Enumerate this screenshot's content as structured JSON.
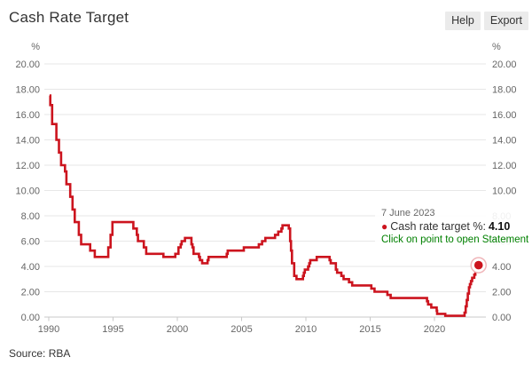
{
  "header": {
    "title": "Cash Rate Target",
    "buttons": {
      "help": "Help",
      "export": "Export"
    }
  },
  "tooltip": {
    "date": "7 June 2023",
    "series_label": "Cash rate target %:",
    "value": "4.10",
    "action": "Click on point to open Statement"
  },
  "footer": {
    "source": "Source: RBA"
  },
  "chart_data": {
    "type": "line",
    "step": "after",
    "title": "Cash Rate Target",
    "unit": "%",
    "grid": true,
    "legend_position": "none",
    "xlim": [
      1989.6,
      2024
    ],
    "ylim": [
      0,
      20
    ],
    "xticks": [
      1990,
      1995,
      2000,
      2005,
      2010,
      2015,
      2020
    ],
    "yticks": [
      0,
      2,
      4,
      6,
      8,
      10,
      12,
      14,
      16,
      18,
      20
    ],
    "ytick_decimals": 2,
    "series": [
      {
        "name": "Cash rate target %",
        "color": "#cc141e",
        "points": [
          [
            1990.06,
            17.5
          ],
          [
            1990.12,
            16.75
          ],
          [
            1990.26,
            15.25
          ],
          [
            1990.59,
            14.0
          ],
          [
            1990.79,
            13.0
          ],
          [
            1990.96,
            12.0
          ],
          [
            1991.26,
            11.5
          ],
          [
            1991.37,
            10.5
          ],
          [
            1991.67,
            9.5
          ],
          [
            1991.85,
            8.5
          ],
          [
            1992.02,
            7.5
          ],
          [
            1992.34,
            6.5
          ],
          [
            1992.52,
            5.75
          ],
          [
            1993.22,
            5.25
          ],
          [
            1993.58,
            4.75
          ],
          [
            1994.63,
            5.5
          ],
          [
            1994.81,
            6.5
          ],
          [
            1994.95,
            7.5
          ],
          [
            1996.58,
            7.0
          ],
          [
            1996.85,
            6.5
          ],
          [
            1996.94,
            6.0
          ],
          [
            1997.39,
            5.5
          ],
          [
            1997.58,
            5.0
          ],
          [
            1998.92,
            4.75
          ],
          [
            1999.84,
            5.0
          ],
          [
            2000.09,
            5.5
          ],
          [
            2000.26,
            5.75
          ],
          [
            2000.34,
            6.0
          ],
          [
            2000.59,
            6.25
          ],
          [
            2001.1,
            5.75
          ],
          [
            2001.18,
            5.5
          ],
          [
            2001.26,
            5.0
          ],
          [
            2001.68,
            4.75
          ],
          [
            2001.76,
            4.5
          ],
          [
            2001.93,
            4.25
          ],
          [
            2002.35,
            4.5
          ],
          [
            2002.43,
            4.75
          ],
          [
            2003.84,
            5.0
          ],
          [
            2003.92,
            5.25
          ],
          [
            2005.17,
            5.5
          ],
          [
            2006.34,
            5.75
          ],
          [
            2006.59,
            6.0
          ],
          [
            2006.85,
            6.25
          ],
          [
            2007.6,
            6.5
          ],
          [
            2007.85,
            6.75
          ],
          [
            2008.1,
            7.0
          ],
          [
            2008.18,
            7.25
          ],
          [
            2008.67,
            7.0
          ],
          [
            2008.77,
            6.0
          ],
          [
            2008.84,
            5.25
          ],
          [
            2008.92,
            4.25
          ],
          [
            2009.09,
            3.25
          ],
          [
            2009.27,
            3.0
          ],
          [
            2009.77,
            3.25
          ],
          [
            2009.84,
            3.5
          ],
          [
            2009.92,
            3.75
          ],
          [
            2010.17,
            4.0
          ],
          [
            2010.26,
            4.25
          ],
          [
            2010.34,
            4.5
          ],
          [
            2010.84,
            4.75
          ],
          [
            2011.84,
            4.5
          ],
          [
            2011.93,
            4.25
          ],
          [
            2012.33,
            3.75
          ],
          [
            2012.43,
            3.5
          ],
          [
            2012.76,
            3.25
          ],
          [
            2012.93,
            3.0
          ],
          [
            2013.35,
            2.75
          ],
          [
            2013.6,
            2.5
          ],
          [
            2015.09,
            2.25
          ],
          [
            2015.34,
            2.0
          ],
          [
            2016.34,
            1.75
          ],
          [
            2016.59,
            1.5
          ],
          [
            2019.42,
            1.25
          ],
          [
            2019.5,
            1.0
          ],
          [
            2019.75,
            0.75
          ],
          [
            2020.17,
            0.5
          ],
          [
            2020.21,
            0.25
          ],
          [
            2020.84,
            0.1
          ],
          [
            2022.34,
            0.35
          ],
          [
            2022.43,
            0.85
          ],
          [
            2022.51,
            1.35
          ],
          [
            2022.59,
            1.85
          ],
          [
            2022.68,
            2.35
          ],
          [
            2022.76,
            2.6
          ],
          [
            2022.84,
            2.85
          ],
          [
            2022.93,
            3.1
          ],
          [
            2023.1,
            3.35
          ],
          [
            2023.18,
            3.6
          ],
          [
            2023.34,
            3.85
          ],
          [
            2023.43,
            4.1
          ]
        ]
      }
    ],
    "last_point": {
      "date": "7 June 2023",
      "value": 4.1
    },
    "colors": {
      "line": "#cc141e",
      "grid": "#e7e7e7",
      "axis": "#c8c8c8",
      "tick_label": "#666666"
    }
  }
}
